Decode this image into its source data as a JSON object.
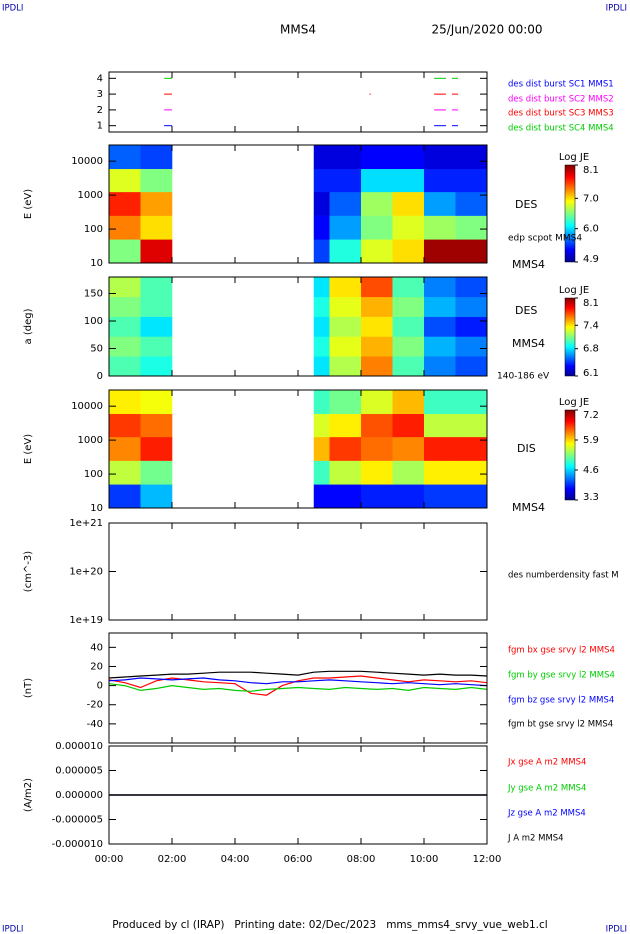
{
  "header": {
    "corner_labels": [
      "IPDLI",
      "IPDLI",
      "IPDLI",
      "IPDLI"
    ],
    "title": "MMS4",
    "date": "25/Jun/2020 00:00"
  },
  "footer": "Produced by cl (IRAP)   Printing date: 02/Dec/2023   mms_mms4_srvy_vue_web1.cl",
  "chart_data": [
    {
      "type": "segments",
      "xlim": [
        0,
        12
      ],
      "ylim": [
        0.6,
        4.4
      ],
      "yticks": [
        1,
        2,
        3,
        4
      ],
      "series": [
        {
          "name": "des dist burst SC1 MMS1",
          "color": "#0000ff",
          "level": 1,
          "segments": [
            [
              1.75,
              2.0
            ],
            [
              10.32,
              10.7
            ],
            [
              10.89,
              11.08
            ]
          ]
        },
        {
          "name": "des dist burst SC2 MMS2",
          "color": "#ff00ff",
          "level": 2,
          "segments": [
            [
              1.75,
              2.0
            ],
            [
              10.32,
              10.7
            ],
            [
              10.89,
              11.08
            ]
          ]
        },
        {
          "name": "des dist burst SC3 MMS3",
          "color": "#ff0000",
          "level": 3,
          "segments": [
            [
              1.75,
              2.0
            ],
            [
              8.27,
              8.31
            ],
            [
              10.32,
              10.7
            ],
            [
              10.89,
              11.08
            ]
          ]
        },
        {
          "name": "des dist burst SC4 MMS4",
          "color": "#00cc00",
          "level": 4,
          "segments": [
            [
              1.75,
              2.0
            ],
            [
              10.32,
              10.7
            ],
            [
              10.89,
              11.08
            ]
          ]
        }
      ]
    },
    {
      "type": "heatmap",
      "ylabel": "E (eV)",
      "log_y": true,
      "colormap": "jet",
      "xlim": [
        0,
        12
      ],
      "ylim": [
        10,
        30000
      ],
      "yticks": [
        10,
        100,
        1000,
        10000
      ],
      "x_edges": [
        0,
        1,
        2,
        6.5,
        7,
        8,
        9,
        10,
        11,
        12
      ],
      "y_edges": [
        10,
        50,
        250,
        1250,
        6000,
        30000
      ],
      "values": [
        [
          6.5,
          7.8,
          null,
          5.5,
          6.2,
          6.8,
          7.0,
          8.0,
          8.0
        ],
        [
          7.3,
          7.0,
          null,
          5.3,
          5.8,
          6.5,
          6.8,
          6.6,
          6.5
        ],
        [
          7.6,
          7.2,
          null,
          5.2,
          5.6,
          6.6,
          7.0,
          5.8,
          5.6
        ],
        [
          6.8,
          6.5,
          null,
          5.4,
          5.4,
          6.0,
          6.0,
          5.4,
          5.4
        ],
        [
          5.6,
          5.5,
          null,
          5.2,
          5.2,
          5.3,
          5.3,
          5.2,
          5.2
        ]
      ],
      "colorbar": {
        "title": "Log JE",
        "lim": [
          4.9,
          8.1
        ],
        "ticks": [
          4.9,
          {
            "value": 6,
            "label": "6.0"
          },
          {
            "value": 7,
            "label": "7.0"
          },
          8.1
        ]
      },
      "side_labels": [
        "DES",
        "edp scpot MMS4",
        "MMS4"
      ]
    },
    {
      "type": "heatmap",
      "ylabel": "a (deg)",
      "log_y": false,
      "colormap": "jet",
      "xlim": [
        0,
        12
      ],
      "ylim": [
        0,
        180
      ],
      "yticks": [
        0,
        50,
        100,
        150
      ],
      "x_edges": [
        0,
        1,
        2,
        6.5,
        7,
        8,
        9,
        10,
        11,
        12
      ],
      "y_edges": [
        0,
        36,
        72,
        108,
        144,
        180
      ],
      "values": [
        [
          7.0,
          6.9,
          null,
          6.8,
          7.2,
          7.6,
          7.0,
          6.6,
          6.5
        ],
        [
          7.1,
          7.0,
          null,
          6.9,
          7.3,
          7.5,
          7.1,
          6.7,
          6.6
        ],
        [
          7.0,
          6.8,
          null,
          6.8,
          7.2,
          7.4,
          7.0,
          6.5,
          6.4
        ],
        [
          7.1,
          7.0,
          null,
          6.9,
          7.3,
          7.5,
          7.1,
          6.7,
          6.6
        ],
        [
          7.2,
          7.0,
          null,
          6.8,
          7.4,
          7.7,
          7.0,
          6.6,
          6.5
        ]
      ],
      "colorbar": {
        "title": "Log JE",
        "lim": [
          6.1,
          8.1
        ],
        "ticks": [
          6.1,
          6.8,
          7.4,
          8.1
        ]
      },
      "side_labels": [
        "DES",
        "MMS4",
        "140-186 eV"
      ]
    },
    {
      "type": "heatmap",
      "ylabel": "E (eV)",
      "log_y": true,
      "colormap": "jet",
      "xlim": [
        0,
        12
      ],
      "ylim": [
        10,
        30000
      ],
      "yticks": [
        10,
        100,
        1000,
        10000
      ],
      "x_edges": [
        0,
        1,
        2,
        6.5,
        7,
        8,
        9,
        10,
        11,
        12
      ],
      "y_edges": [
        10,
        50,
        250,
        1250,
        6000,
        30000
      ],
      "values": [
        [
          4.0,
          4.5,
          null,
          3.8,
          3.8,
          3.9,
          3.9,
          4.0,
          4.0
        ],
        [
          5.5,
          5.2,
          null,
          5.0,
          5.5,
          5.8,
          5.4,
          5.8,
          5.8
        ],
        [
          6.2,
          6.6,
          null,
          6.0,
          6.5,
          6.3,
          6.2,
          6.6,
          6.6
        ],
        [
          6.5,
          6.3,
          null,
          5.6,
          5.8,
          6.4,
          6.6,
          5.5,
          5.5
        ],
        [
          5.8,
          5.7,
          null,
          5.0,
          5.2,
          5.6,
          6.0,
          5.0,
          5.0
        ]
      ],
      "colorbar": {
        "title": "Log JE",
        "lim": [
          3.3,
          7.2
        ],
        "ticks": [
          3.3,
          4.6,
          5.9,
          7.2
        ]
      },
      "side_labels": [
        "DIS",
        "MMS4"
      ]
    },
    {
      "type": "line",
      "ylabel": "(cm^-3)",
      "log_y": true,
      "xlim": [
        0,
        12
      ],
      "ylim": [
        1e+19,
        1e+21
      ],
      "yticks": [
        {
          "value": 1e+19,
          "label": "1e+19"
        },
        {
          "value": 1e+20,
          "label": "1e+20"
        },
        {
          "value": 1e+21,
          "label": "1e+21"
        }
      ],
      "side_labels": [
        "des numberdensity fast M"
      ],
      "series": []
    },
    {
      "type": "line",
      "ylabel": "(nT)",
      "log_y": false,
      "xlim": [
        0,
        12
      ],
      "ylim": [
        -60,
        55
      ],
      "yticks": [
        -40,
        -20,
        0,
        20,
        40
      ],
      "x": [
        0,
        0.5,
        1,
        1.5,
        2,
        2.5,
        3,
        3.5,
        4,
        4.5,
        5,
        5.5,
        6,
        6.5,
        7,
        7.5,
        8,
        8.5,
        9,
        9.5,
        10,
        10.5,
        11,
        11.5,
        12
      ],
      "series": [
        {
          "name": "fgm bx gse srvy l2 MMS4",
          "color": "#ff0000",
          "values": [
            6,
            3,
            -2,
            5,
            8,
            6,
            4,
            3,
            2,
            -8,
            -10,
            0,
            5,
            8,
            8,
            9,
            10,
            8,
            6,
            4,
            6,
            5,
            4,
            5,
            3
          ]
        },
        {
          "name": "fgm by gse srvy l2 MMS4",
          "color": "#00cc00",
          "values": [
            2,
            0,
            -5,
            -3,
            0,
            -2,
            -4,
            -3,
            -5,
            -6,
            -4,
            -3,
            -2,
            -3,
            -4,
            -2,
            -3,
            -4,
            -3,
            -5,
            -2,
            -3,
            -4,
            -2,
            -4
          ]
        },
        {
          "name": "fgm bz gse srvy l2 MMS4",
          "color": "#0000ff",
          "values": [
            5,
            6,
            8,
            7,
            6,
            7,
            8,
            6,
            5,
            3,
            2,
            4,
            4,
            5,
            6,
            5,
            4,
            3,
            2,
            3,
            2,
            1,
            2,
            1,
            0
          ]
        },
        {
          "name": "fgm bt gse srvy l2 MMS4",
          "color": "#000000",
          "values": [
            8,
            9,
            10,
            11,
            12,
            12,
            13,
            14,
            14,
            14,
            13,
            12,
            11,
            14,
            15,
            15,
            15,
            14,
            13,
            12,
            11,
            12,
            11,
            11,
            10
          ]
        }
      ]
    },
    {
      "type": "line",
      "ylabel": "(A/m2)",
      "log_y": false,
      "xlim": [
        0,
        12
      ],
      "ylim": [
        -1e-05,
        1e-05
      ],
      "yticks": [
        {
          "value": -1e-05,
          "label": "-0.000010"
        },
        {
          "value": -5e-06,
          "label": "-0.000005"
        },
        {
          "value": 0,
          "label": "0.000000"
        },
        {
          "value": 5e-06,
          "label": "0.000005"
        },
        {
          "value": 1e-05,
          "label": "0.000010"
        }
      ],
      "x": [
        0,
        12
      ],
      "series": [
        {
          "name": "Jx gse A m2 MMS4",
          "color": "#ff0000",
          "values": [
            0,
            0
          ]
        },
        {
          "name": "Jy gse A m2 MMS4",
          "color": "#00cc00",
          "values": [
            0,
            0
          ]
        },
        {
          "name": "Jz gse A m2 MMS4",
          "color": "#0000ff",
          "values": [
            0,
            0
          ]
        },
        {
          "name": "J A m2 MMS4",
          "color": "#000000",
          "values": [
            0,
            0
          ]
        }
      ],
      "xticks": [
        {
          "value": 0,
          "label": "00:00"
        },
        {
          "value": 2,
          "label": "02:00"
        },
        {
          "value": 4,
          "label": "04:00"
        },
        {
          "value": 6,
          "label": "06:00"
        },
        {
          "value": 8,
          "label": "08:00"
        },
        {
          "value": 10,
          "label": "10:00"
        },
        {
          "value": 12,
          "label": "12:00"
        }
      ]
    }
  ]
}
